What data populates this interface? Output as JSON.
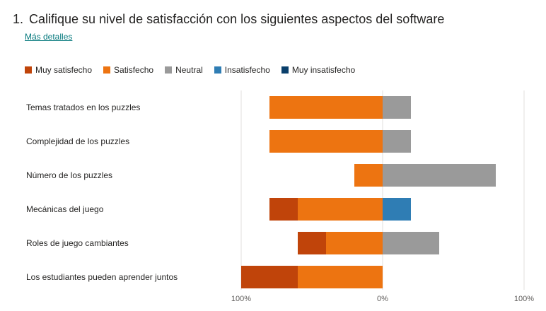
{
  "question": {
    "number": "1.",
    "title": "Califique su nivel de satisfacción con los siguientes aspectos del software",
    "more_details": "Más detalles"
  },
  "chart_data": {
    "type": "bar",
    "orientation": "horizontal-diverging",
    "legend": [
      {
        "name": "Muy satisfecho",
        "color": "#c0440a"
      },
      {
        "name": "Satisfecho",
        "color": "#ed7411"
      },
      {
        "name": "Neutral",
        "color": "#9a9a9a"
      },
      {
        "name": "Insatisfecho",
        "color": "#2f7db4"
      },
      {
        "name": "Muy insatisfecho",
        "color": "#0a3f6b"
      }
    ],
    "categories": [
      "Temas tratados en los puzzles",
      "Complejidad de los puzzles",
      "Número de los puzzles",
      "Mecánicas del juego",
      "Roles de juego cambiantes",
      "Los estudiantes pueden aprender juntos"
    ],
    "series": [
      {
        "name": "Muy satisfecho",
        "values": [
          0,
          0,
          0,
          20,
          20,
          40
        ]
      },
      {
        "name": "Satisfecho",
        "values": [
          80,
          80,
          20,
          60,
          40,
          60
        ]
      },
      {
        "name": "Neutral",
        "values": [
          20,
          20,
          80,
          0,
          40,
          0
        ]
      },
      {
        "name": "Insatisfecho",
        "values": [
          0,
          0,
          0,
          20,
          0,
          0
        ]
      },
      {
        "name": "Muy insatisfecho",
        "values": [
          0,
          0,
          0,
          0,
          0,
          0
        ]
      }
    ],
    "x_ticks": [
      "100%",
      "0%",
      "100%"
    ],
    "xlim": [
      -100,
      100
    ],
    "grid": true
  }
}
